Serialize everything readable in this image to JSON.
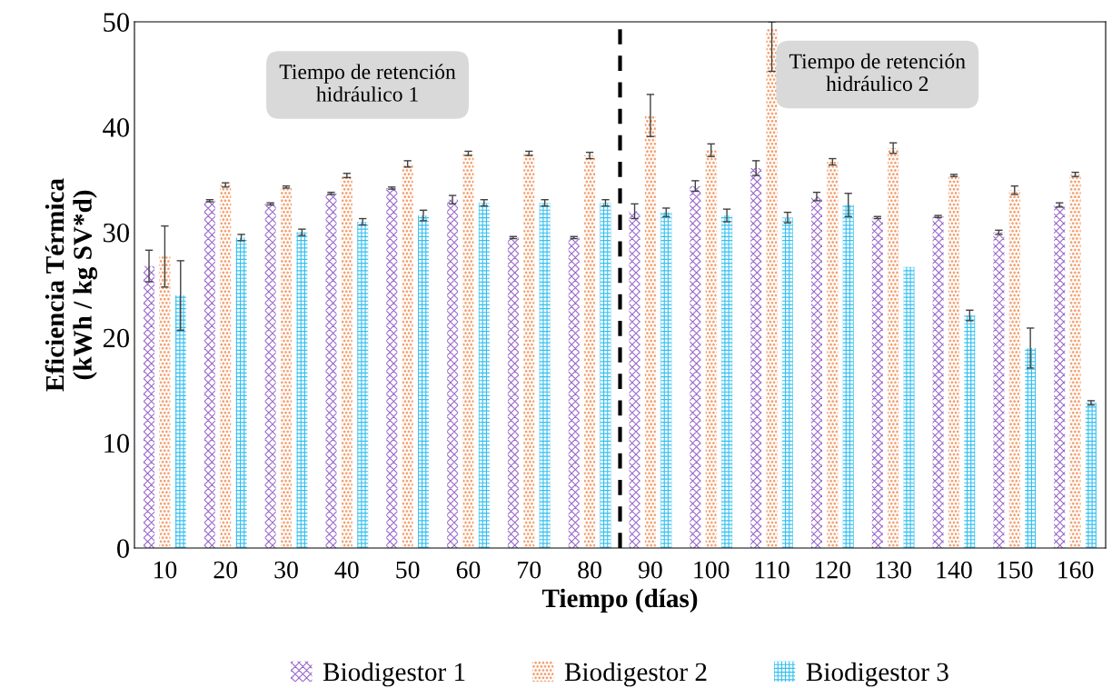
{
  "chart_data": {
    "type": "bar",
    "xlabel": "Tiempo (días)",
    "ylabel": "Eficiencia Térmica\n(kWh / kg SV*d)",
    "x": [
      10,
      20,
      30,
      40,
      50,
      60,
      70,
      80,
      90,
      100,
      110,
      120,
      130,
      140,
      150,
      160
    ],
    "xlim": [
      5,
      165
    ],
    "xticks": [
      10,
      20,
      30,
      40,
      50,
      60,
      70,
      80,
      90,
      100,
      110,
      120,
      130,
      140,
      150,
      160
    ],
    "ylim": [
      0,
      50
    ],
    "yticks": [
      0,
      10,
      20,
      30,
      40,
      50
    ],
    "series": [
      {
        "name": "Biodigestor 1",
        "color": "#9966cc",
        "values": [
          26.8,
          33.0,
          32.7,
          33.7,
          34.2,
          33.1,
          29.5,
          29.5,
          32.0,
          34.4,
          36.1,
          33.4,
          31.4,
          31.5,
          30.0,
          32.6
        ],
        "errors": [
          1.5,
          0.1,
          0.1,
          0.1,
          0.1,
          0.4,
          0.1,
          0.1,
          0.7,
          0.5,
          0.7,
          0.4,
          0.1,
          0.1,
          0.2,
          0.2
        ]
      },
      {
        "name": "Biodigestor 2",
        "color": "#f4a070",
        "values": [
          27.7,
          34.5,
          34.3,
          35.4,
          36.5,
          37.5,
          37.5,
          37.3,
          41.1,
          37.8,
          49.3,
          36.7,
          38.0,
          35.4,
          34.0,
          35.5
        ],
        "errors": [
          2.9,
          0.2,
          0.1,
          0.2,
          0.3,
          0.2,
          0.2,
          0.3,
          2.0,
          0.6,
          [
            45.3,
            50
          ],
          0.3,
          0.5,
          0.1,
          0.4,
          0.2
        ]
      },
      {
        "name": "Biodigestor 3",
        "color": "#33c0f0",
        "values": [
          24.0,
          29.5,
          30.0,
          31.0,
          31.6,
          32.8,
          32.8,
          32.8,
          31.9,
          31.6,
          31.4,
          32.6,
          26.7,
          22.1,
          19.0,
          13.8
        ],
        "errors": [
          3.3,
          0.3,
          0.3,
          0.3,
          0.5,
          0.3,
          0.3,
          0.3,
          0.4,
          0.6,
          0.5,
          1.1,
          null,
          0.5,
          1.9,
          0.2
        ]
      }
    ],
    "ref_lines": [
      {
        "axis": "x",
        "value": 85,
        "color": "#000000",
        "line_style": "dashed"
      }
    ],
    "annotations": [
      "Tiempo de retención\nhidráulico 1",
      "Tiempo de retención\nhidráulico 2"
    ],
    "grid": false,
    "legend": "bottom"
  }
}
